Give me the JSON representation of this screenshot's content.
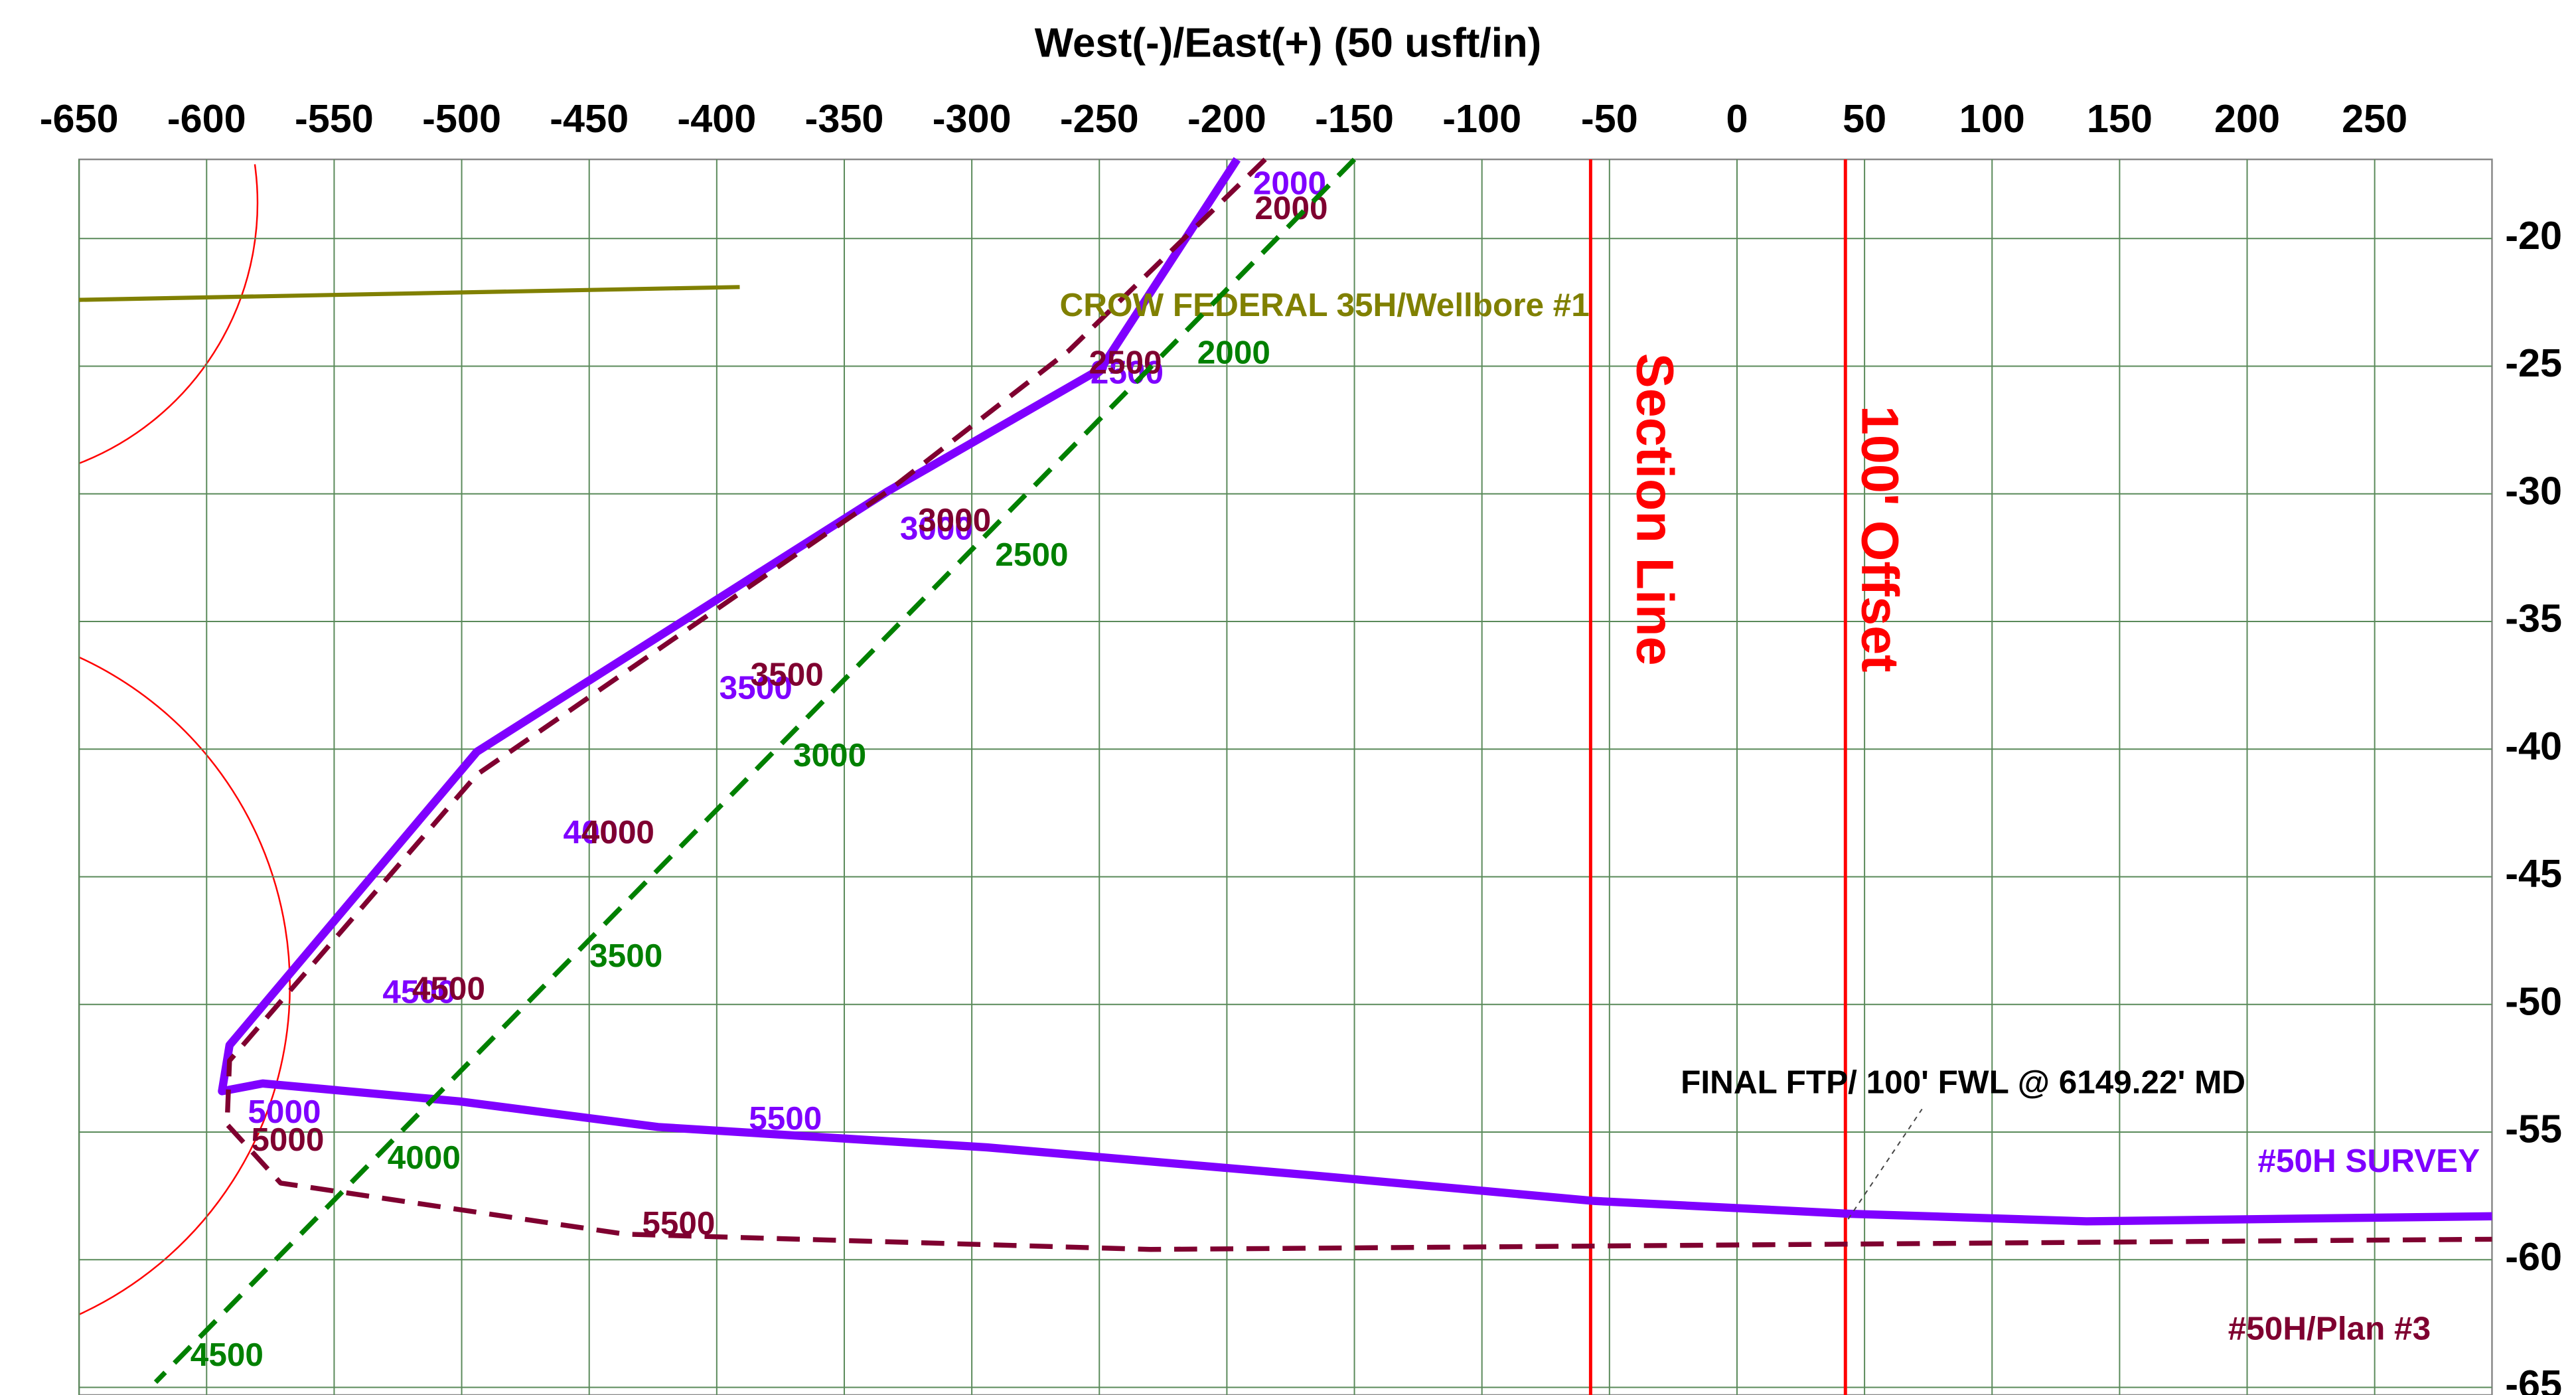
{
  "chart_data": {
    "type": "line",
    "title": "West(-)/East(+) (50 usft/in)",
    "xlim": [
      -650,
      296
    ],
    "ylim": [
      -65.3,
      -16.9
    ],
    "xticks": [
      -650,
      -600,
      -550,
      -500,
      -450,
      -400,
      -350,
      -300,
      -250,
      -200,
      -150,
      -100,
      -50,
      0,
      50,
      100,
      150,
      200,
      250
    ],
    "yticks": [
      -20,
      -25,
      -30,
      -35,
      -40,
      -45,
      -50,
      -55,
      -60,
      -65
    ],
    "grid": true,
    "series": [
      {
        "name": "#50H SURVEY",
        "color": "#7f00ff",
        "dash": false,
        "x": [
          -196,
          -249.4,
          -333,
          -494,
          -591,
          -594,
          -578,
          -501,
          -423,
          -294,
          -166,
          -56,
          44,
          137,
          296
        ],
        "values": [
          -16.9,
          -25.1,
          -29.9,
          -40.1,
          -51.6,
          -53.4,
          -53.1,
          -53.8,
          -54.8,
          -55.6,
          -56.7,
          -57.7,
          -58.2,
          -58.5,
          -58.3
        ],
        "md_labels": [
          "2000",
          "2500",
          "3000",
          "3500",
          "4000",
          "4500",
          "5000",
          "5500"
        ]
      },
      {
        "name": "#50H/Plan #3",
        "color": "#7f0030",
        "dash": true,
        "x": [
          -185,
          -262,
          -333,
          -494,
          -591,
          -592,
          -571,
          -436,
          -230,
          296
        ],
        "values": [
          -16.9,
          -24.4,
          -29.9,
          -41,
          -52.2,
          -54.7,
          -57,
          -59,
          -59.6,
          -59.2
        ],
        "md_labels": [
          "2000",
          "2500",
          "3000",
          "3500",
          "4000",
          "4500",
          "5000",
          "5500"
        ]
      },
      {
        "name": "CROW FEDERAL 35H/Wellbore #1",
        "color": "#808000",
        "dash": false,
        "x": [
          -650,
          -391
        ],
        "values": [
          -22.4,
          -21.9
        ],
        "md_labels": []
      },
      {
        "color": "#008000",
        "dash": true,
        "x": [
          -150,
          -620
        ],
        "values": [
          -16.9,
          -64.8
        ],
        "md_labels": [
          "2000",
          "2500",
          "3000",
          "3500",
          "4000",
          "4500"
        ]
      }
    ],
    "vlines": [
      {
        "value": -57.4,
        "label": "Section Line",
        "color": "#ff0000"
      },
      {
        "value": 42.5,
        "label": "100' Offset",
        "color": "#ff0000"
      }
    ],
    "annotation": "FINAL FTP/ 100' FWL @ 6149.22' MD"
  }
}
